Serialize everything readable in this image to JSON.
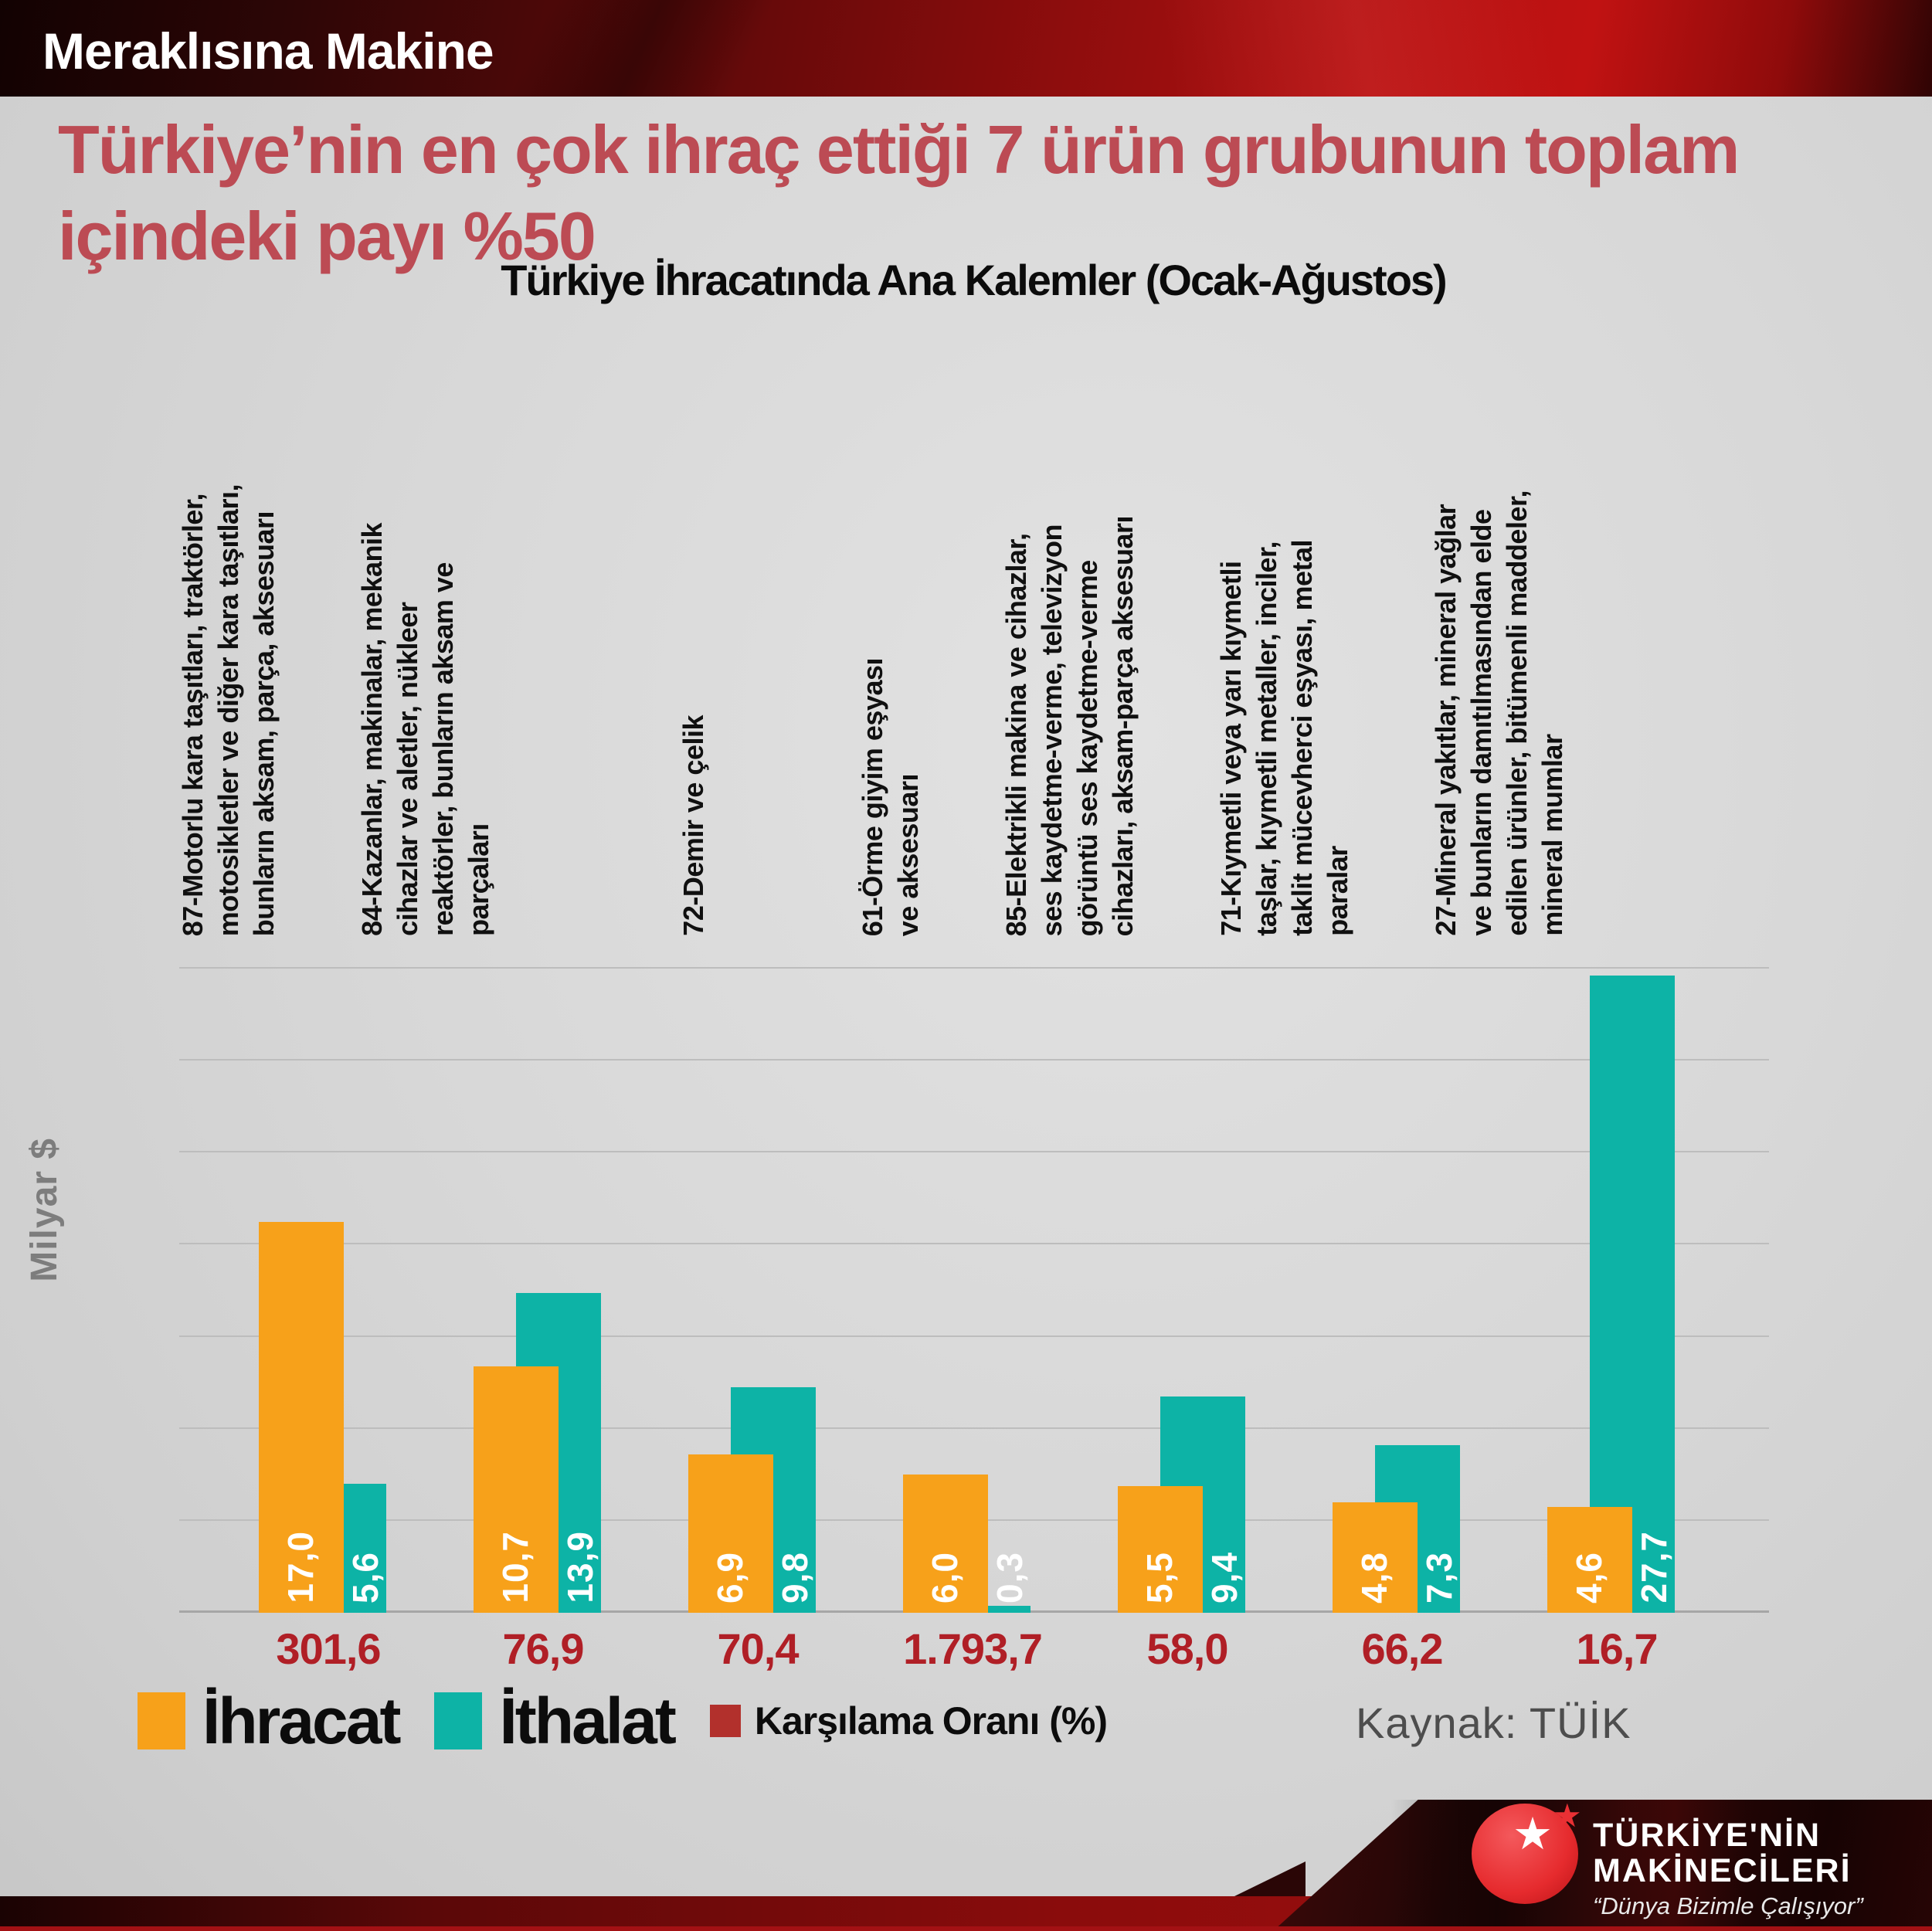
{
  "header": {
    "brand": "Meraklısına Makine"
  },
  "title": {
    "line1": "Türkiye’nin en çok ihraç ettiği 7 ürün grubunun toplam",
    "line2": "içindeki payı %50"
  },
  "chart_data": {
    "type": "bar",
    "title": "Türkiye İhracatında Ana Kalemler (Ocak-Ağustos)",
    "ylabel": "Milyar $",
    "ylim": [
      0,
      28
    ],
    "gridline_step": 4,
    "grid": true,
    "legend_position": "bottom",
    "categories": [
      "87-Motorlu kara taşıtları, traktörler,\nmotosikletler ve diğer kara taşıtları,\nbunların aksam, parça, aksesuarı",
      "84-Kazanlar, makinalar, mekanik\ncihazlar ve aletler, nükleer\nreaktörler, bunların aksam ve\nparçaları",
      "72-Demir ve çelik",
      "61-Örme giyim eşyası\nve aksesuarı",
      "85-Elektrikli makina ve cihazlar,\nses kaydetme-verme, televizyon\ngörüntü ses kaydetme-verme\ncihazları, aksam-parça aksesuarı",
      "71-Kıymetli veya yarı kıymetli\ntaşlar, kıymetli metaller, inciler,\ntaklit mücevherci eşyası, metal\nparalar",
      "27-Mineral yakıtlar, mineral yağlar\nve bunların damıtılmasından elde\nedilen ürünler, bitümenli maddeler,\nmineral mumlar"
    ],
    "series": [
      {
        "name": "İhracat",
        "color": "#F7A11A",
        "values": [
          17.0,
          10.7,
          6.9,
          6.0,
          5.5,
          4.8,
          4.6
        ],
        "labels": [
          "17,0",
          "10,7",
          "6,9",
          "6,0",
          "5,5",
          "4,8",
          "4,6"
        ]
      },
      {
        "name": "İthalat",
        "color": "#0DB3A6",
        "values": [
          5.6,
          13.9,
          9.8,
          0.3,
          9.4,
          7.3,
          27.7
        ],
        "labels": [
          "5,6",
          "13,9",
          "9,8",
          "0,3",
          "9,4",
          "7,3",
          "27,7"
        ]
      },
      {
        "name": "Karşılama Oranı (%)",
        "color": "#B2302C",
        "values": [
          301.6,
          76.9,
          70.4,
          1793.7,
          58.0,
          66.2,
          16.7
        ],
        "labels": [
          "301,6",
          "76,9",
          "70,4",
          "1.793,7",
          "58,0",
          "66,2",
          "16,7"
        ]
      }
    ]
  },
  "source": "Kaynak: TÜİK",
  "footer": {
    "logo_line1": "TÜRKİYE'NİN",
    "logo_line2": "MAKİNECİLERİ",
    "logo_tagline": "“Dünya Bizimle Çalışıyor”"
  }
}
